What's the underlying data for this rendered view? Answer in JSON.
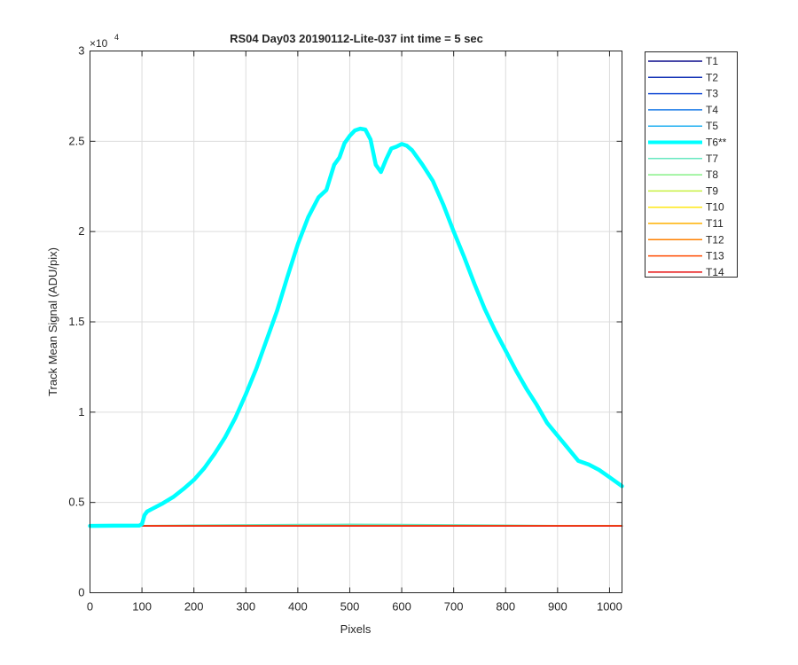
{
  "chart_data": {
    "type": "line",
    "title": "RS04 Day03 20190112-Lite-037 int time = 5 sec",
    "xlabel": "Pixels",
    "ylabel": "Track Mean Signal (ADU/pix)",
    "xlim": [
      0,
      1024
    ],
    "ylim": [
      0,
      30000
    ],
    "y_exponent_label": "×10",
    "y_exponent": "4",
    "xticks": [
      0,
      100,
      200,
      300,
      400,
      500,
      600,
      700,
      800,
      900,
      1000
    ],
    "xtick_labels": [
      "0",
      "100",
      "200",
      "300",
      "400",
      "500",
      "600",
      "700",
      "800",
      "900",
      "1000"
    ],
    "yticks": [
      0,
      5000,
      10000,
      15000,
      20000,
      25000,
      30000
    ],
    "ytick_labels": [
      "0",
      "0.5",
      "1",
      "1.5",
      "2",
      "2.5",
      "3"
    ],
    "grid": true,
    "legend_position": "outside-top-right",
    "series": [
      {
        "name": "T1",
        "color": "#0a0a8c",
        "width": 1.5,
        "flat": 3700
      },
      {
        "name": "T2",
        "color": "#1230b4",
        "width": 1.5,
        "flat": 3700
      },
      {
        "name": "T3",
        "color": "#1a4fd6",
        "width": 1.5,
        "flat": 3700
      },
      {
        "name": "T4",
        "color": "#1f7ee8",
        "width": 1.5,
        "flat": 3710
      },
      {
        "name": "T5",
        "color": "#22b0f0",
        "width": 1.5,
        "flat": 3720
      },
      {
        "name": "T6**",
        "color": "#00ffff",
        "width": 4.5,
        "x": [
          0,
          95,
          100,
          105,
          110,
          120,
          140,
          160,
          180,
          200,
          220,
          240,
          260,
          280,
          300,
          320,
          340,
          360,
          380,
          400,
          420,
          440,
          455,
          470,
          480,
          490,
          500,
          510,
          520,
          530,
          540,
          550,
          560,
          570,
          580,
          590,
          600,
          610,
          620,
          640,
          660,
          680,
          700,
          720,
          740,
          760,
          780,
          800,
          820,
          840,
          860,
          880,
          900,
          920,
          940,
          960,
          980,
          1000,
          1024
        ],
        "y": [
          3700,
          3720,
          3800,
          4300,
          4500,
          4650,
          4950,
          5300,
          5750,
          6250,
          6900,
          7700,
          8600,
          9700,
          11000,
          12400,
          14000,
          15600,
          17500,
          19300,
          20800,
          21900,
          22300,
          23700,
          24100,
          24900,
          25300,
          25600,
          25700,
          25650,
          25100,
          23700,
          23300,
          24000,
          24600,
          24700,
          24850,
          24750,
          24500,
          23700,
          22800,
          21500,
          20000,
          18600,
          17100,
          15700,
          14500,
          13400,
          12300,
          11300,
          10400,
          9400,
          8700,
          8000,
          7300,
          7100,
          6800,
          6400,
          5900
        ]
      },
      {
        "name": "T7",
        "color": "#66e8c0",
        "width": 1.5,
        "x": [
          0,
          100,
          200,
          300,
          400,
          500,
          600,
          700,
          800,
          900,
          1024
        ],
        "y": [
          3700,
          3720,
          3740,
          3760,
          3780,
          3790,
          3780,
          3760,
          3740,
          3720,
          3700
        ]
      },
      {
        "name": "T8",
        "color": "#88f088",
        "width": 1.5,
        "flat": 3720
      },
      {
        "name": "T9",
        "color": "#c8f040",
        "width": 1.5,
        "flat": 3710
      },
      {
        "name": "T10",
        "color": "#ffe814",
        "width": 1.5,
        "flat": 3705
      },
      {
        "name": "T11",
        "color": "#ffb000",
        "width": 1.5,
        "flat": 3700
      },
      {
        "name": "T12",
        "color": "#ff8000",
        "width": 1.5,
        "flat": 3700
      },
      {
        "name": "T13",
        "color": "#ff4a00",
        "width": 1.5,
        "flat": 3700
      },
      {
        "name": "T14",
        "color": "#e81010",
        "width": 1.5,
        "flat": 3700
      }
    ]
  }
}
